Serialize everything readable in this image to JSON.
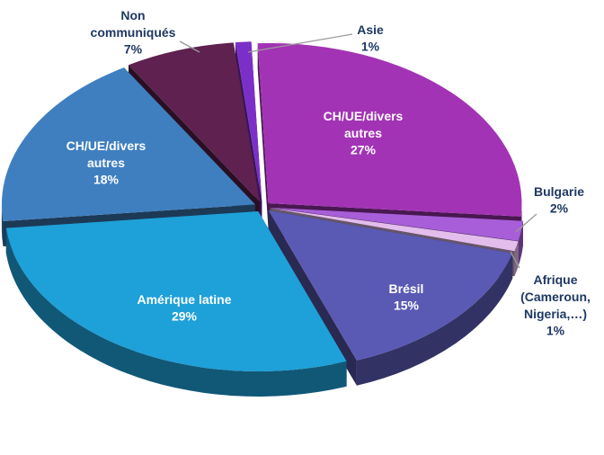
{
  "chart_data": {
    "type": "pie3d",
    "categories": [
      "Asie",
      "CH/UE/divers autres",
      "Bulgarie",
      "Afrique (Cameroun, Nigeria,…)",
      "Brésil",
      "Amérique latine",
      "CH/UE/divers autres",
      "Non communiqués"
    ],
    "values": [
      1,
      27,
      2,
      1,
      15,
      29,
      18,
      7
    ],
    "value_labels": [
      "1%",
      "27%",
      "2%",
      "1%",
      "15%",
      "29%",
      "18%",
      "7%"
    ],
    "colors": [
      "#7b2fc8",
      "#a333b5",
      "#a85ed8",
      "#e3bdec",
      "#5a5ab5",
      "#1ea0d8",
      "#3f7fc0",
      "#5e2150"
    ]
  }
}
